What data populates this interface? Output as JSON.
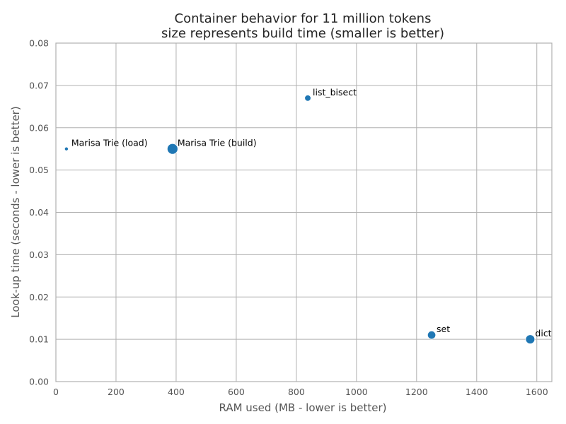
{
  "chart_data": {
    "type": "scatter",
    "title": "Container behavior for 11 million tokens",
    "subtitle": "size represents build time (smaller is better)",
    "xlabel": "RAM used (MB - lower is better)",
    "ylabel": "Look-up time (seconds - lower is better)",
    "xlim": [
      0,
      1650
    ],
    "ylim": [
      0,
      0.08
    ],
    "xticks": [
      "0",
      "200",
      "400",
      "600",
      "800",
      "1000",
      "1200",
      "1400",
      "1600"
    ],
    "yticks": [
      "0.00",
      "0.01",
      "0.02",
      "0.03",
      "0.04",
      "0.05",
      "0.06",
      "0.07",
      "0.08"
    ],
    "grid": true,
    "point_color": "#1f77b4",
    "points": [
      {
        "label": "Marisa Trie (load)",
        "x": 35,
        "y": 0.055,
        "size": 0.3
      },
      {
        "label": "Marisa Trie (build)",
        "x": 388,
        "y": 0.055,
        "size": 1.0
      },
      {
        "label": "list_bisect",
        "x": 838,
        "y": 0.067,
        "size": 0.55
      },
      {
        "label": "set",
        "x": 1250,
        "y": 0.011,
        "size": 0.75
      },
      {
        "label": "dict",
        "x": 1578,
        "y": 0.01,
        "size": 0.85
      }
    ]
  }
}
